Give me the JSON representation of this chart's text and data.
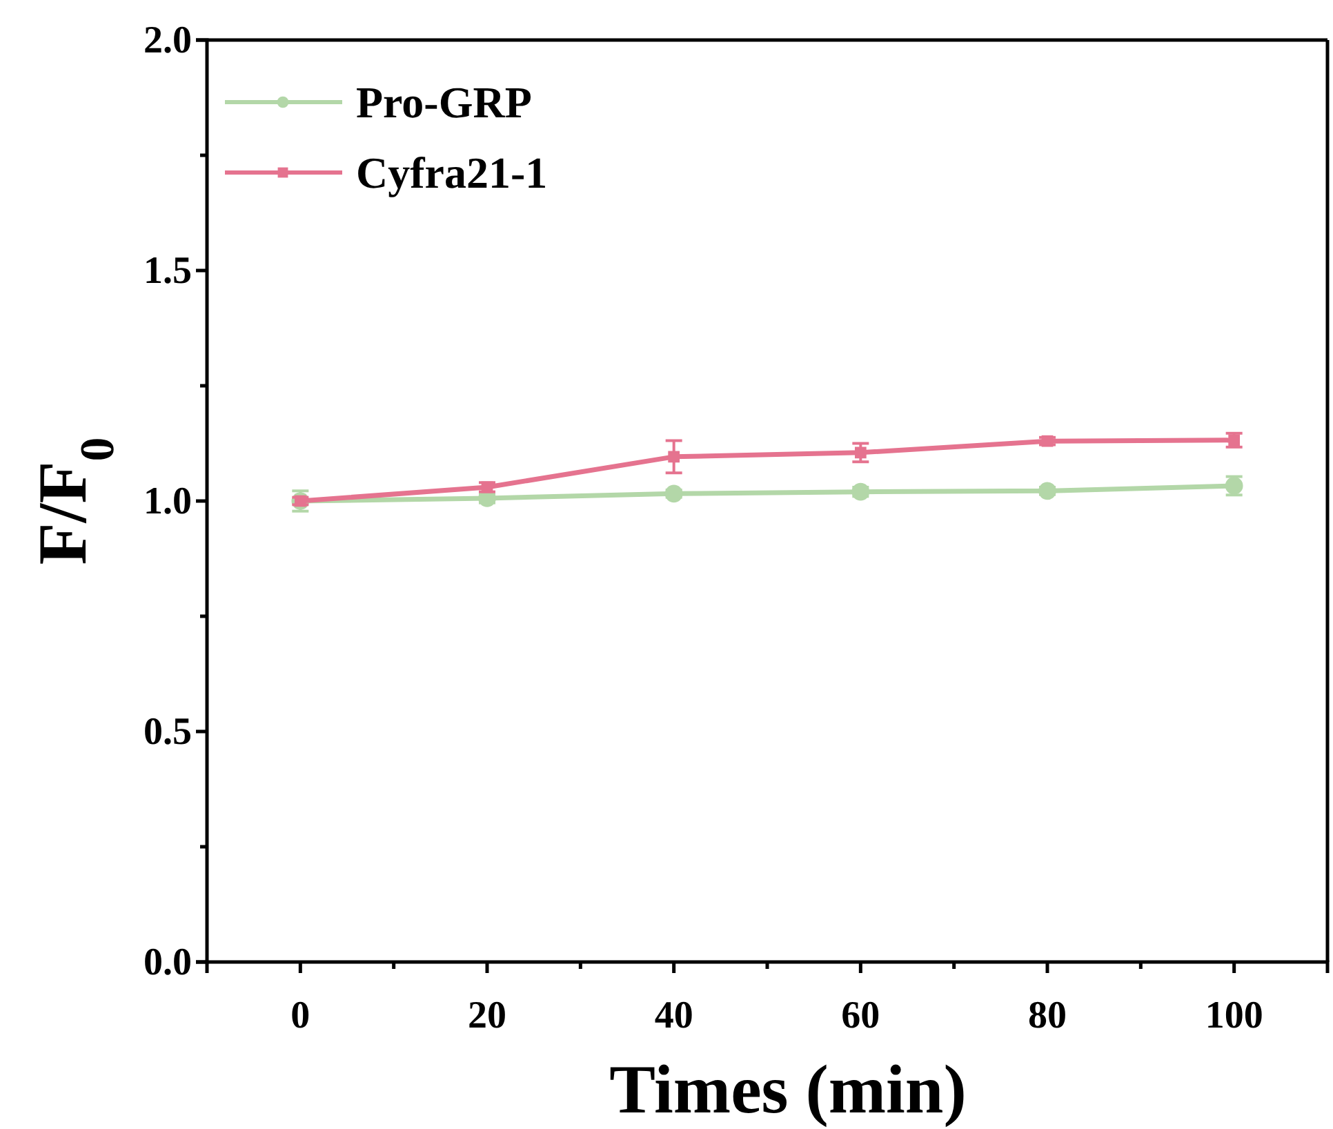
{
  "chart_data": {
    "type": "line",
    "xlabel": "Times (min)",
    "ylabel": "F/F$_{0}$",
    "x": [
      0,
      20,
      40,
      60,
      80,
      100
    ],
    "xlim": [
      -10,
      110
    ],
    "xticks": [
      0,
      {
        "value": 10,
        "label": null
      },
      20,
      {
        "value": 30,
        "label": null
      },
      40,
      {
        "value": 50,
        "label": null
      },
      60,
      {
        "value": 70,
        "label": null
      },
      80,
      {
        "value": 90,
        "label": null
      },
      100
    ],
    "ylim": [
      0,
      2
    ],
    "yticks": [
      {
        "value": 0,
        "label": "0.0"
      },
      {
        "value": 0.25,
        "label": null
      },
      {
        "value": 0.5,
        "label": "0.5"
      },
      {
        "value": 0.75,
        "label": null
      },
      {
        "value": 1,
        "label": "1.0"
      },
      {
        "value": 1.25,
        "label": null
      },
      {
        "value": 1.5,
        "label": "1.5"
      },
      {
        "value": 1.75,
        "label": null
      },
      {
        "value": 2,
        "label": "2.0"
      }
    ],
    "grid": false,
    "legend": "top left",
    "line_style": "solid",
    "series": [
      {
        "name": "Pro-GRP",
        "color": "#b3d7a8",
        "marker": "circle",
        "values": [
          1.0,
          1.006,
          1.016,
          1.02,
          1.022,
          1.033
        ],
        "errors": [
          0.022,
          0.01,
          0.008,
          0.01,
          0.008,
          0.02
        ]
      },
      {
        "name": "Cyfra21-1",
        "color": "#e5738f",
        "marker": "square",
        "values": [
          1.0,
          1.03,
          1.096,
          1.105,
          1.13,
          1.132
        ],
        "errors": [
          0.008,
          0.01,
          0.035,
          0.02,
          0.008,
          0.015
        ]
      }
    ]
  }
}
